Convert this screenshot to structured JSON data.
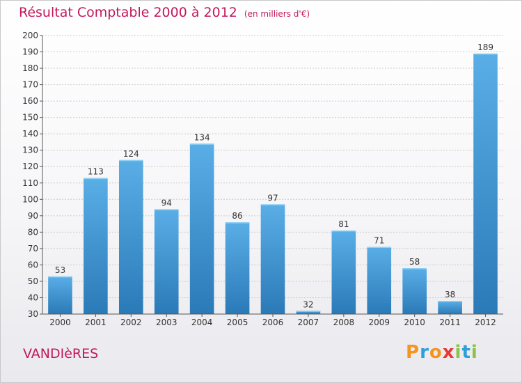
{
  "header": {
    "title": "Résultat Comptable 2000 à 2012",
    "unit": "(en milliers d'€)"
  },
  "footer": {
    "town": "VANDIèRES",
    "logo_letters": [
      "P",
      "r",
      "o",
      "x",
      "i",
      "t",
      "i"
    ]
  },
  "colors": {
    "title": "#c2185b",
    "bar_top": "#5aaee6",
    "bar_bottom": "#2a7ab8",
    "grid": "#cccccc",
    "logo": [
      "#f7941d",
      "#2e9fd9",
      "#f7941d",
      "#e53935",
      "#8bc34a",
      "#2e9fd9",
      "#8bc34a"
    ]
  },
  "chart_data": {
    "type": "bar",
    "title": "Résultat Comptable 2000 à 2012",
    "xlabel": "",
    "ylabel": "",
    "categories": [
      "2000",
      "2001",
      "2002",
      "2003",
      "2004",
      "2005",
      "2006",
      "2007",
      "2008",
      "2009",
      "2010",
      "2011",
      "2012"
    ],
    "values": [
      53,
      113,
      124,
      94,
      134,
      86,
      97,
      32,
      81,
      71,
      58,
      38,
      189
    ],
    "ylim": [
      30,
      200
    ],
    "yticks": [
      30,
      40,
      50,
      60,
      70,
      80,
      90,
      100,
      110,
      120,
      130,
      140,
      150,
      160,
      170,
      180,
      190,
      200
    ],
    "grid": true
  }
}
